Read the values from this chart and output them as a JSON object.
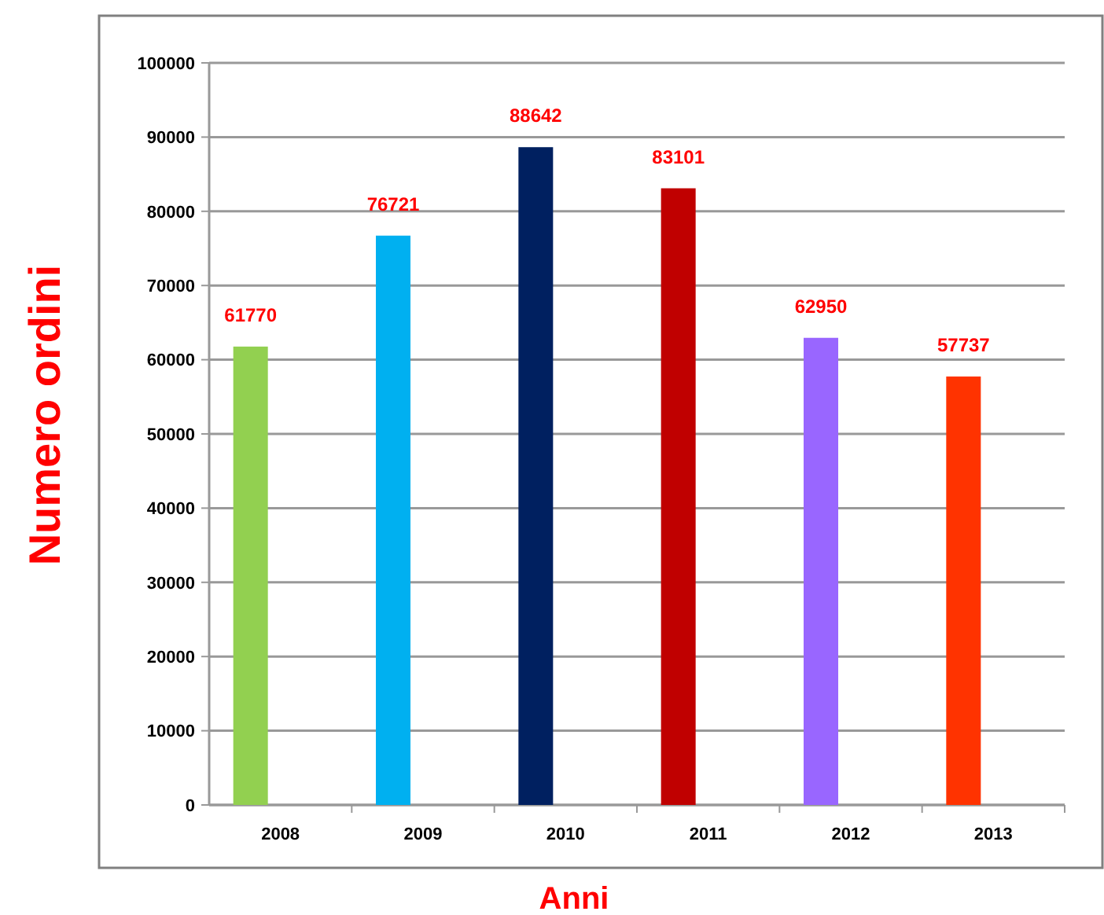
{
  "chart_data": {
    "type": "bar",
    "xlabel": "Anni",
    "ylabel": "Numero ordini",
    "categories": [
      "2008",
      "2009",
      "2010",
      "2011",
      "2012",
      "2013"
    ],
    "values": [
      61770,
      76721,
      88642,
      83101,
      62950,
      57737
    ],
    "colors": [
      "#92d050",
      "#00b0f0",
      "#002060",
      "#c00000",
      "#9966ff",
      "#ff3300"
    ],
    "ylim": [
      0,
      100000
    ],
    "yticks": [
      0,
      10000,
      20000,
      30000,
      40000,
      50000,
      60000,
      70000,
      80000,
      90000,
      100000
    ],
    "grid": "y",
    "data_labels": true
  }
}
